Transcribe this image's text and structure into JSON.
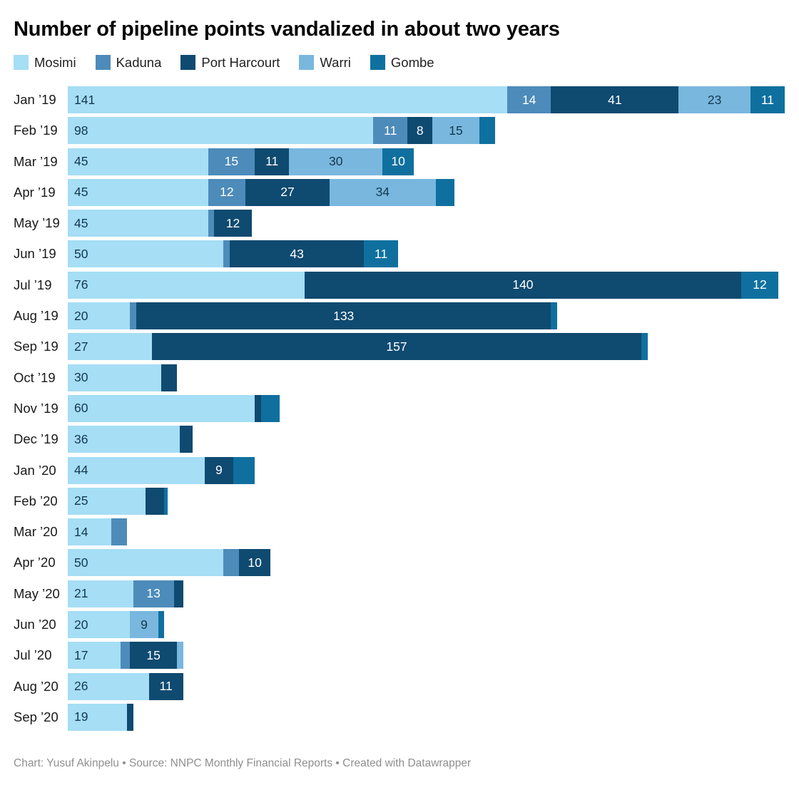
{
  "title": "Number of pipeline points vandalized in about two years",
  "footer": "Chart: Yusuf Akinpelu • Source: NNPC Monthly Financial Reports • Created with Datawrapper",
  "chart_data": {
    "type": "bar",
    "orientation": "horizontal-stacked",
    "xlim": [
      0,
      230
    ],
    "grid": false,
    "legend_position": "top",
    "label_min_value": 8,
    "series_names": [
      "Mosimi",
      "Kaduna",
      "Port Harcourt",
      "Warri",
      "Gombe"
    ],
    "series_colors": [
      "#a5def5",
      "#4d8bba",
      "#0f4a70",
      "#79b7de",
      "#0f709f"
    ],
    "series_label_colors": [
      "#14384f",
      "#ffffff",
      "#ffffff",
      "#14384f",
      "#ffffff"
    ],
    "categories": [
      "Jan ’19",
      "Feb ’19",
      "Mar ’19",
      "Apr ’19",
      "May ’19",
      "Jun ’19",
      "Jul ’19",
      "Aug ’19",
      "Sep ’19",
      "Oct ’19",
      "Nov ’19",
      "Dec ’19",
      "Jan ’20",
      "Feb ’20",
      "Mar ’20",
      "Apr ’20",
      "May ’20",
      "Jun ’20",
      "Jul ’20",
      "Aug ’20",
      "Sep ’20"
    ],
    "rows": [
      {
        "label": "Jan ’19",
        "values": [
          141,
          14,
          41,
          23,
          11
        ]
      },
      {
        "label": "Feb ’19",
        "values": [
          98,
          11,
          8,
          15,
          5
        ]
      },
      {
        "label": "Mar ’19",
        "values": [
          45,
          15,
          11,
          30,
          10
        ]
      },
      {
        "label": "Apr ’19",
        "values": [
          45,
          12,
          27,
          34,
          6
        ]
      },
      {
        "label": "May ’19",
        "values": [
          45,
          2,
          12,
          0,
          0
        ]
      },
      {
        "label": "Jun ’19",
        "values": [
          50,
          2,
          43,
          0,
          11
        ]
      },
      {
        "label": "Jul ’19",
        "values": [
          76,
          0,
          140,
          0,
          12
        ]
      },
      {
        "label": "Aug ’19",
        "values": [
          20,
          2,
          133,
          0,
          2
        ]
      },
      {
        "label": "Sep ’19",
        "values": [
          27,
          0,
          157,
          0,
          2
        ]
      },
      {
        "label": "Oct ’19",
        "values": [
          30,
          0,
          5,
          0,
          0
        ]
      },
      {
        "label": "Nov ’19",
        "values": [
          60,
          0,
          2,
          0,
          6
        ]
      },
      {
        "label": "Dec ’19",
        "values": [
          36,
          0,
          4,
          0,
          0
        ]
      },
      {
        "label": "Jan ’20",
        "values": [
          44,
          0,
          9,
          0,
          7
        ]
      },
      {
        "label": "Feb ’20",
        "values": [
          25,
          0,
          6,
          0,
          1
        ]
      },
      {
        "label": "Mar ’20",
        "values": [
          14,
          5,
          0,
          0,
          0
        ]
      },
      {
        "label": "Apr ’20",
        "values": [
          50,
          5,
          10,
          0,
          0
        ]
      },
      {
        "label": "May ’20",
        "values": [
          21,
          13,
          3,
          0,
          0
        ]
      },
      {
        "label": "Jun ’20",
        "values": [
          20,
          0,
          0,
          9,
          2
        ]
      },
      {
        "label": "Jul ’20",
        "values": [
          17,
          3,
          15,
          2,
          0
        ]
      },
      {
        "label": "Aug ’20",
        "values": [
          26,
          0,
          11,
          0,
          0
        ]
      },
      {
        "label": "Sep ’20",
        "values": [
          19,
          0,
          2,
          0,
          0
        ]
      }
    ]
  }
}
